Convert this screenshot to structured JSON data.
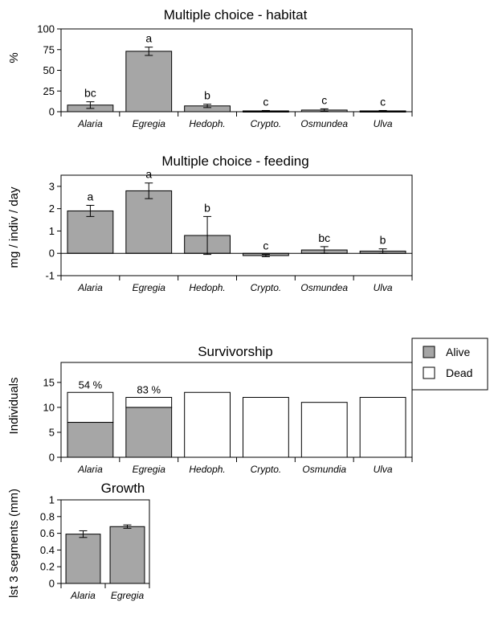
{
  "chart_data": [
    {
      "type": "bar",
      "title": "Multiple choice - habitat",
      "ylabel": "%",
      "categories": [
        "Alaria",
        "Egregia",
        "Hedoph.",
        "Crypto.",
        "Osmundea",
        "Ulva"
      ],
      "values": [
        8,
        73,
        7,
        1,
        2,
        1
      ],
      "errors": [
        4,
        5,
        2,
        0.5,
        1.5,
        0.5
      ],
      "letters": [
        "bc",
        "a",
        "b",
        "c",
        "c",
        "c"
      ],
      "ylim": [
        0,
        100
      ],
      "yticks": [
        0,
        25,
        50,
        75,
        100
      ],
      "bar_color": "#a6a6a6"
    },
    {
      "type": "bar",
      "title": "Multiple choice - feeding",
      "ylabel": "mg / indiv / day",
      "categories": [
        "Alaria",
        "Egregia",
        "Hedoph.",
        "Crypto.",
        "Osmundea",
        "Ulva"
      ],
      "values": [
        1.9,
        2.8,
        0.8,
        -0.1,
        0.15,
        0.1
      ],
      "errors": [
        0.25,
        0.35,
        0.85,
        0.05,
        0.15,
        0.1
      ],
      "letters": [
        "a",
        "a",
        "b",
        "c",
        "bc",
        "b"
      ],
      "ylim": [
        -1,
        3.5
      ],
      "yticks": [
        -1,
        0,
        1,
        2,
        3
      ],
      "bar_color": "#a6a6a6"
    },
    {
      "type": "bar",
      "title": "Survivorship",
      "ylabel": "Individuals",
      "categories": [
        "Alaria",
        "Egregia",
        "Hedoph.",
        "Crypto.",
        "Osmundia",
        "Ulva"
      ],
      "series": [
        {
          "name": "Alive",
          "values": [
            7,
            10,
            0,
            0,
            0,
            0
          ],
          "color": "#a6a6a6"
        },
        {
          "name": "Dead",
          "values": [
            6,
            2,
            13,
            12,
            11,
            12
          ],
          "color": "#ffffff"
        }
      ],
      "bar_labels": [
        "54 %",
        "83 %",
        "",
        "",
        "",
        ""
      ],
      "ylim": [
        0,
        19
      ],
      "yticks": [
        0,
        5,
        10,
        15
      ],
      "legend": "right"
    },
    {
      "type": "bar",
      "title": "Growth",
      "ylabel": "lst 3 segments (mm)",
      "categories": [
        "Alaria",
        "Egregia"
      ],
      "values": [
        0.59,
        0.68
      ],
      "errors": [
        0.04,
        0.02
      ],
      "ylim": [
        0,
        1
      ],
      "yticks": [
        0,
        0.2,
        0.4,
        0.6,
        0.8,
        1
      ],
      "bar_color": "#a6a6a6"
    }
  ]
}
